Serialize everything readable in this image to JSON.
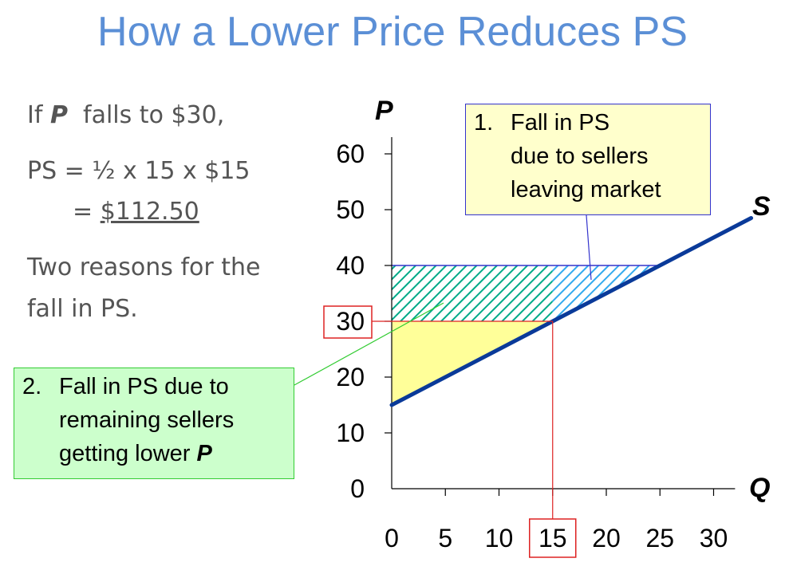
{
  "title": "How a Lower Price Reduces PS",
  "left_text": {
    "line1_pre": "If ",
    "line1_var": "P",
    "line1_post": "  falls to $30,",
    "ps_formula": "PS = ½ x 15 x $15",
    "ps_eq": "= ",
    "ps_value": "$112.50",
    "reasons_line1": "Two reasons for the",
    "reasons_line2": "fall in PS."
  },
  "callouts": {
    "c1": {
      "num": "1.",
      "line1": "Fall in PS",
      "line2": "due to sellers",
      "line3": "leaving market"
    },
    "c2": {
      "num": "2.",
      "line1": "Fall in PS due to",
      "line2": "remaining sellers",
      "line3_pre": "getting lower ",
      "line3_var": "P"
    }
  },
  "colors": {
    "title": "#5b8fd6",
    "supply_line": "#0a3a99",
    "ps_remaining_fill": "#ffff99",
    "hatch_green": "#00aa88",
    "hatch_blue": "#33aaee",
    "highlight_red": "#dd2222"
  },
  "chart_data": {
    "type": "line",
    "xlabel": "Q",
    "ylabel": "P",
    "xlim": [
      0,
      32
    ],
    "ylim": [
      0,
      65
    ],
    "x_ticks": [
      0,
      5,
      10,
      15,
      20,
      25,
      30
    ],
    "y_ticks": [
      0,
      10,
      20,
      30,
      40,
      50,
      60
    ],
    "highlighted_x_tick": 15,
    "highlighted_y_tick": 30,
    "series": [
      {
        "name": "S",
        "x": [
          0,
          33.5
        ],
        "y": [
          15,
          48.5
        ]
      }
    ],
    "regions": [
      {
        "kind": "filled",
        "polygon_x": [
          0,
          15,
          0
        ],
        "polygon_y": [
          30,
          30,
          15
        ]
      },
      {
        "kind": "hatched",
        "polygon_x": [
          0,
          15,
          15,
          0
        ],
        "polygon_y": [
          40,
          40,
          30,
          30
        ]
      },
      {
        "kind": "hatched",
        "polygon_x": [
          15,
          25,
          15
        ],
        "polygon_y": [
          40,
          40,
          30
        ]
      }
    ],
    "reference_point": {
      "x": 15,
      "y": 30
    }
  }
}
